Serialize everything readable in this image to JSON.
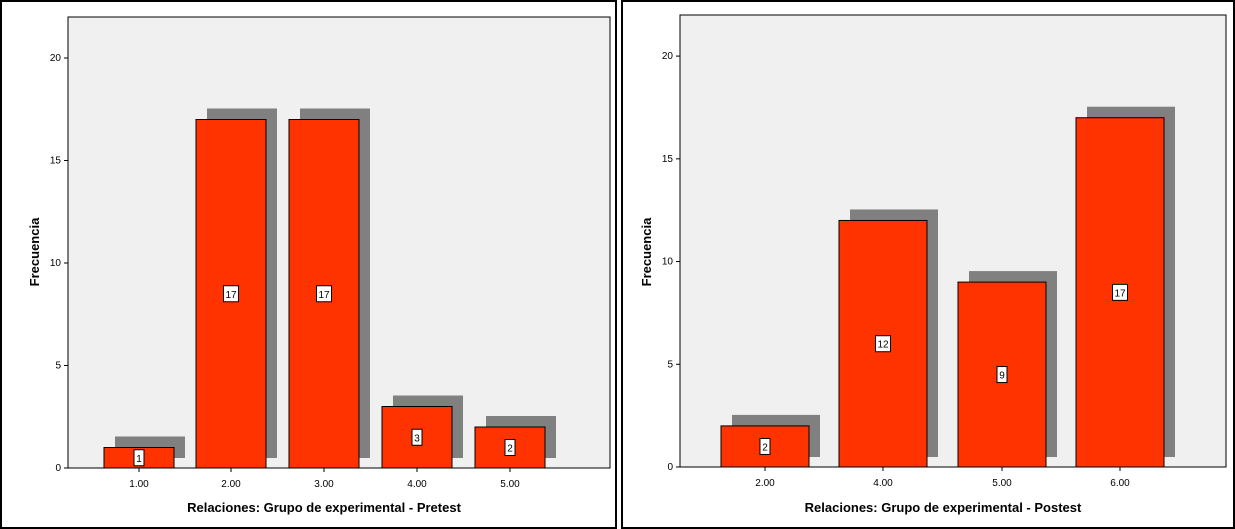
{
  "colors": {
    "bar": "#ff3300",
    "shadow": "#808080",
    "plot_bg": "#f0f0f0"
  },
  "chart_data": [
    {
      "type": "bar",
      "categories": [
        "1.00",
        "2.00",
        "3.00",
        "4.00",
        "5.00"
      ],
      "values": [
        1,
        17,
        17,
        3,
        2
      ],
      "data_labels": [
        "1",
        "17",
        "17",
        "3",
        "2"
      ],
      "xlabel": "Relaciones: Grupo de experimental - Pretest",
      "ylabel": "Frecuencia",
      "yticks": [
        "0",
        "5",
        "10",
        "15",
        "20"
      ],
      "ylim": [
        0,
        22
      ],
      "grid": false
    },
    {
      "type": "bar",
      "categories": [
        "2.00",
        "4.00",
        "5.00",
        "6.00"
      ],
      "values": [
        2,
        12,
        9,
        17
      ],
      "data_labels": [
        "2",
        "12",
        "9",
        "17"
      ],
      "xlabel": "Relaciones: Grupo de experimental - Postest",
      "ylabel": "Frecuencia",
      "yticks": [
        "0",
        "5",
        "10",
        "15",
        "20"
      ],
      "ylim": [
        0,
        22
      ],
      "grid": false
    }
  ]
}
